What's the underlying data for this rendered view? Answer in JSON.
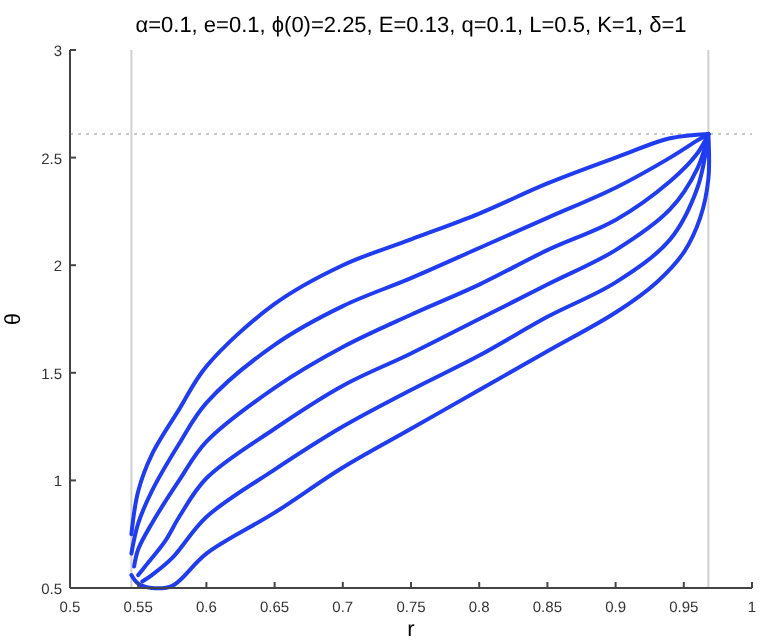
{
  "chart_data": {
    "type": "line",
    "title": "α=0.1, e=0.1, ϕ(0)=2.25, E=0.13, q=0.1, L=0.5, K=1, δ=1",
    "xlabel": "r",
    "ylabel": "θ",
    "xlim": [
      0.5,
      1
    ],
    "ylim": [
      0.5,
      3
    ],
    "xticks": [
      0.5,
      0.55,
      0.6,
      0.65,
      0.7,
      0.75,
      0.8,
      0.85,
      0.9,
      0.95,
      1
    ],
    "yticks": [
      0.5,
      1,
      1.5,
      2,
      2.5,
      3
    ],
    "grid": false,
    "marker": "none",
    "line_style": "solid",
    "ref_lines": [
      {
        "axis": "x",
        "value": 0.545,
        "color": "#d0d0d0",
        "line_style": "solid"
      },
      {
        "axis": "x",
        "value": 0.968,
        "color": "#d0d0d0",
        "line_style": "solid"
      },
      {
        "axis": "y",
        "value": 2.61,
        "color": "#c8c8c8",
        "line_style": "dotted"
      }
    ],
    "series": [
      {
        "color": "#1f3cf0",
        "x": [
          0.545,
          0.55,
          0.56,
          0.58,
          0.6,
          0.65,
          0.7,
          0.75,
          0.8,
          0.85,
          0.9,
          0.94,
          0.968
        ],
        "values": [
          0.75,
          0.95,
          1.12,
          1.33,
          1.53,
          1.82,
          2.0,
          2.12,
          2.24,
          2.38,
          2.5,
          2.59,
          2.61
        ]
      },
      {
        "color": "#1f3cf0",
        "x": [
          0.545,
          0.55,
          0.56,
          0.58,
          0.6,
          0.65,
          0.7,
          0.75,
          0.8,
          0.85,
          0.9,
          0.94,
          0.96,
          0.968
        ],
        "values": [
          0.66,
          0.8,
          0.95,
          1.17,
          1.36,
          1.63,
          1.81,
          1.94,
          2.08,
          2.22,
          2.36,
          2.5,
          2.58,
          2.61
        ]
      },
      {
        "color": "#1f3cf0",
        "x": [
          0.547,
          0.55,
          0.56,
          0.58,
          0.6,
          0.65,
          0.7,
          0.75,
          0.8,
          0.85,
          0.9,
          0.94,
          0.96,
          0.968
        ],
        "values": [
          0.6,
          0.68,
          0.8,
          1.0,
          1.18,
          1.43,
          1.62,
          1.77,
          1.91,
          2.07,
          2.21,
          2.39,
          2.52,
          2.61
        ]
      },
      {
        "color": "#1f3cf0",
        "x": [
          0.55,
          0.555,
          0.57,
          0.58,
          0.6,
          0.65,
          0.7,
          0.75,
          0.8,
          0.85,
          0.9,
          0.94,
          0.96,
          0.968
        ],
        "values": [
          0.56,
          0.6,
          0.72,
          0.83,
          1.01,
          1.24,
          1.44,
          1.59,
          1.75,
          1.91,
          2.07,
          2.26,
          2.45,
          2.61
        ]
      },
      {
        "color": "#1f3cf0",
        "x": [
          0.553,
          0.56,
          0.575,
          0.6,
          0.65,
          0.7,
          0.75,
          0.8,
          0.85,
          0.9,
          0.94,
          0.96,
          0.968
        ],
        "values": [
          0.53,
          0.56,
          0.64,
          0.83,
          1.05,
          1.25,
          1.42,
          1.58,
          1.76,
          1.92,
          2.12,
          2.36,
          2.61
        ]
      },
      {
        "color": "#1f3cf0",
        "x": [
          0.545,
          0.55,
          0.56,
          0.575,
          0.6,
          0.65,
          0.7,
          0.75,
          0.8,
          0.85,
          0.9,
          0.93,
          0.95,
          0.962,
          0.968,
          0.968
        ],
        "values": [
          0.56,
          0.52,
          0.5,
          0.51,
          0.66,
          0.85,
          1.06,
          1.24,
          1.42,
          1.6,
          1.78,
          1.92,
          2.06,
          2.22,
          2.4,
          2.61
        ]
      }
    ]
  }
}
